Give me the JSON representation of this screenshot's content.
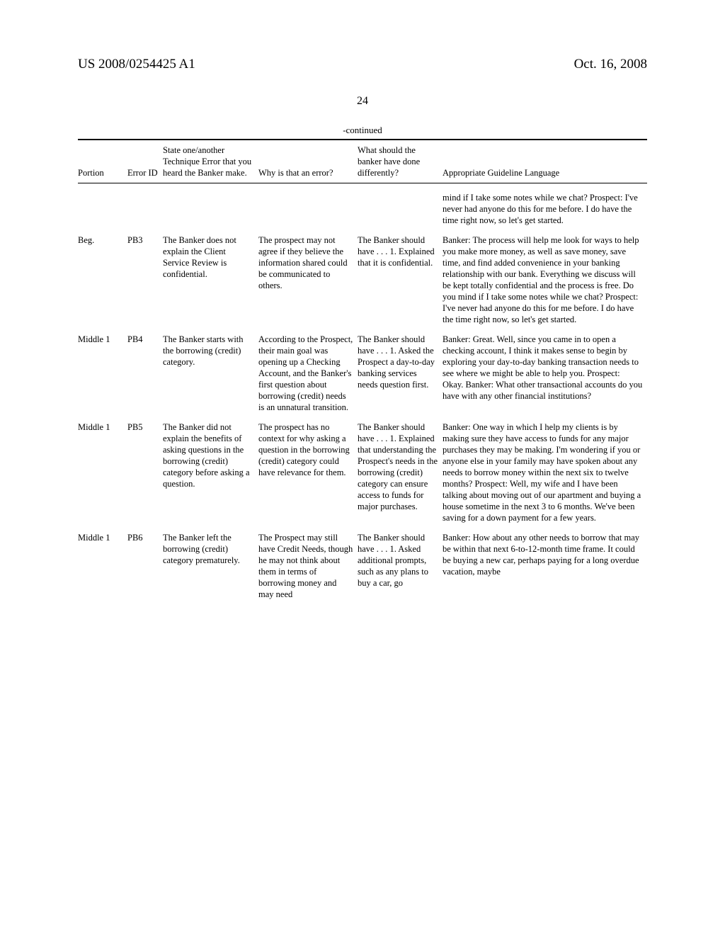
{
  "header": {
    "left": "US 2008/0254425 A1",
    "right": "Oct. 16, 2008"
  },
  "page_number": "24",
  "continued_label": "-continued",
  "columns": {
    "portion": "Portion",
    "error_id": "Error ID",
    "state": "State one/another Technique Error that you heard the Banker make.",
    "why": "Why is that an error?",
    "what": "What should the banker have done differently?",
    "lang": "Appropriate Guideline Language"
  },
  "rows": [
    {
      "portion": "",
      "error_id": "",
      "state": "",
      "why": "",
      "what": "",
      "lang": "mind if I take some notes while we chat?\nProspect: I've never had anyone do this for me before. I do have the time right now, so let's get started."
    },
    {
      "portion": "Beg.",
      "error_id": "PB3",
      "state": "The Banker does not explain the Client Service Review is confidential.",
      "why": "The prospect may not agree if they believe the information shared could be communicated to others.",
      "what": "The Banker should have . . .\n1. Explained that it is confidential.",
      "lang": "Banker: The process will help me look for ways to help you make more money, as well as save money, save time, and find added convenience in your banking relationship with our bank. Everything we discuss will be kept totally confidential and the process is free. Do you mind if I take some notes while we chat?\nProspect: I've never had anyone do this for me before. I do have the time right now, so let's get started."
    },
    {
      "portion": "Middle 1",
      "error_id": "PB4",
      "state": "The Banker starts with the borrowing (credit) category.",
      "why": "According to the Prospect, their main goal was opening up a Checking Account, and the Banker's first question about borrowing (credit) needs is an unnatural transition.",
      "what": "The Banker should have . . .\n1. Asked the Prospect a day-to-day banking services needs question first.",
      "lang": "Banker: Great. Well, since you came in to open a checking account, I think it makes sense to begin by exploring your day-to-day banking transaction needs to see where we might be able to help you.\nProspect: Okay.\nBanker: What other transactional accounts do you have with any other financial institutions?"
    },
    {
      "portion": "Middle 1",
      "error_id": "PB5",
      "state": "The Banker did not explain the benefits of asking questions in the borrowing (credit) category before asking a question.",
      "why": "The prospect has no context for why asking a question in the borrowing (credit) category could have relevance for them.",
      "what": "The Banker should have . . .\n1. Explained that understanding the Prospect's needs in the borrowing (credit) category can ensure access to funds for major purchases.",
      "lang": "Banker: One way in which I help my clients is by making sure they have access to funds for any major purchases they may be making.\nI'm wondering if you or anyone else in your family may have spoken about any needs to borrow money within the next six to twelve months?\nProspect: Well, my wife and I have been talking about moving out of our apartment and buying a house sometime in the next 3 to 6 months. We've been saving for a down payment for a few years."
    },
    {
      "portion": "Middle 1",
      "error_id": "PB6",
      "state": "The Banker left the borrowing (credit) category prematurely.",
      "why": "The Prospect may still have Credit Needs, though he may not think about them in terms of borrowing money and may need",
      "what": "The Banker should have . . .\n1. Asked additional prompts, such as any plans to buy a car, go",
      "lang": "Banker: How about any other needs to borrow that may be within that next 6-to-12-month time frame. It could be buying a new car, perhaps paying for a long overdue vacation, maybe"
    }
  ]
}
